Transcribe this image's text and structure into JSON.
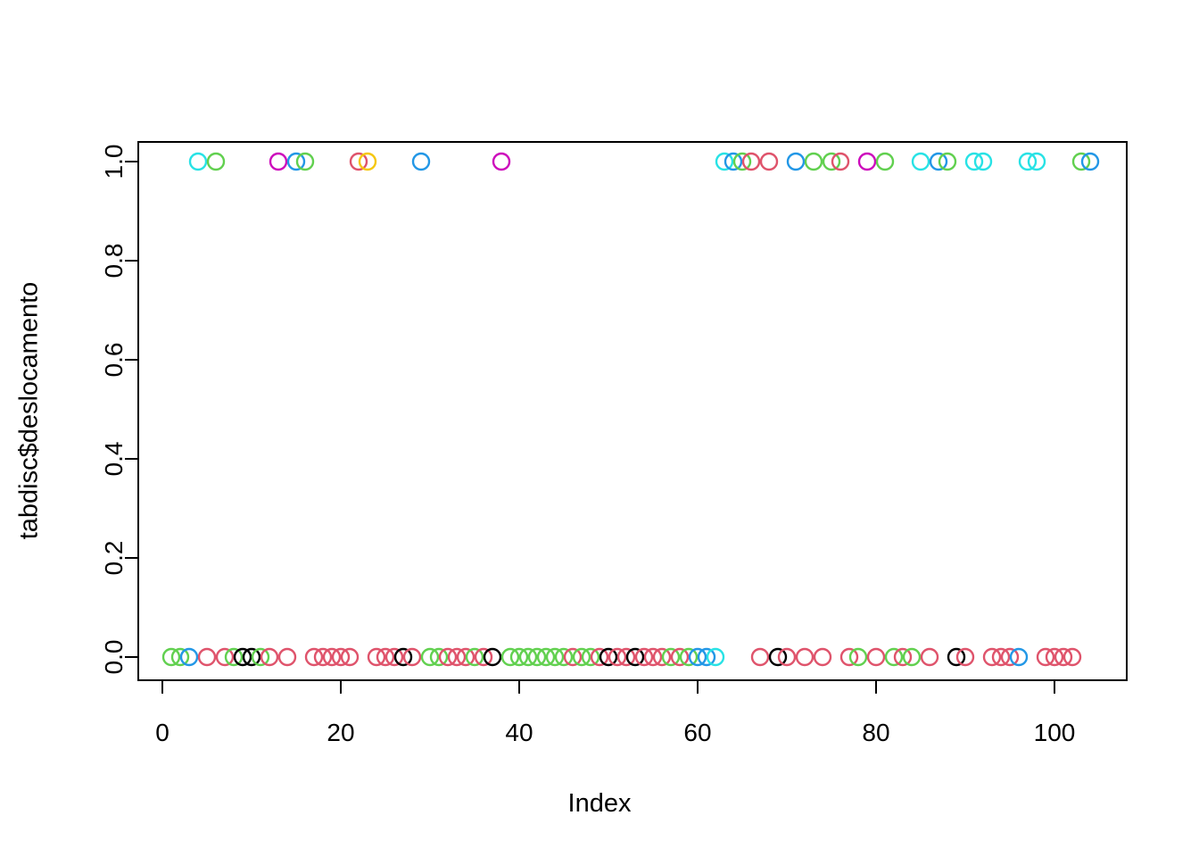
{
  "figure": {
    "background": "#ffffff",
    "border_color": "#000000"
  },
  "chart_data": {
    "type": "scatter",
    "title": "",
    "xlabel": "Index",
    "ylabel": "tabdisc$deslocamento",
    "x_ticks": [
      0,
      20,
      40,
      60,
      80,
      100
    ],
    "y_ticks": [
      "0.0",
      "0.2",
      "0.4",
      "0.6",
      "0.8",
      "1.0"
    ],
    "y_tick_values": [
      0.0,
      0.2,
      0.4,
      0.6,
      0.8,
      1.0
    ],
    "xlim": [
      -3.2,
      109.2
    ],
    "ylim": [
      -0.04,
      1.04
    ],
    "grid": false,
    "legend": null,
    "marker": "open-circle",
    "palette": {
      "k": "#000000",
      "r": "#DF536B",
      "g": "#61D04F",
      "b": "#2297E6",
      "c": "#28E2E5",
      "m": "#CD0BBC",
      "o": "#F5C710"
    },
    "points": [
      [
        1,
        0,
        "g"
      ],
      [
        2,
        0,
        "g"
      ],
      [
        3,
        0,
        "b"
      ],
      [
        4,
        1,
        "c"
      ],
      [
        5,
        0,
        "r"
      ],
      [
        6,
        1,
        "g"
      ],
      [
        7,
        0,
        "r"
      ],
      [
        8,
        0,
        "g"
      ],
      [
        9,
        0,
        "k"
      ],
      [
        10,
        0,
        "k"
      ],
      [
        11,
        0,
        "g"
      ],
      [
        12,
        0,
        "r"
      ],
      [
        13,
        1,
        "m"
      ],
      [
        14,
        0,
        "r"
      ],
      [
        15,
        1,
        "b"
      ],
      [
        16,
        1,
        "g"
      ],
      [
        17,
        0,
        "r"
      ],
      [
        18,
        0,
        "r"
      ],
      [
        19,
        0,
        "r"
      ],
      [
        20,
        0,
        "r"
      ],
      [
        21,
        0,
        "r"
      ],
      [
        22,
        1,
        "r"
      ],
      [
        23,
        1,
        "o"
      ],
      [
        24,
        0,
        "r"
      ],
      [
        25,
        0,
        "r"
      ],
      [
        26,
        0,
        "r"
      ],
      [
        27,
        0,
        "k"
      ],
      [
        28,
        0,
        "r"
      ],
      [
        29,
        1,
        "b"
      ],
      [
        30,
        0,
        "g"
      ],
      [
        31,
        0,
        "g"
      ],
      [
        32,
        0,
        "r"
      ],
      [
        33,
        0,
        "r"
      ],
      [
        34,
        0,
        "r"
      ],
      [
        35,
        0,
        "g"
      ],
      [
        36,
        0,
        "r"
      ],
      [
        37,
        0,
        "k"
      ],
      [
        38,
        1,
        "m"
      ],
      [
        39,
        0,
        "g"
      ],
      [
        40,
        0,
        "g"
      ],
      [
        41,
        0,
        "g"
      ],
      [
        42,
        0,
        "g"
      ],
      [
        43,
        0,
        "g"
      ],
      [
        44,
        0,
        "g"
      ],
      [
        45,
        0,
        "g"
      ],
      [
        46,
        0,
        "r"
      ],
      [
        47,
        0,
        "g"
      ],
      [
        48,
        0,
        "g"
      ],
      [
        49,
        0,
        "r"
      ],
      [
        50,
        0,
        "k"
      ],
      [
        51,
        0,
        "r"
      ],
      [
        52,
        0,
        "r"
      ],
      [
        53,
        0,
        "k"
      ],
      [
        54,
        0,
        "r"
      ],
      [
        55,
        0,
        "r"
      ],
      [
        56,
        0,
        "r"
      ],
      [
        57,
        0,
        "g"
      ],
      [
        58,
        0,
        "r"
      ],
      [
        59,
        0,
        "g"
      ],
      [
        60,
        0,
        "b"
      ],
      [
        61,
        0,
        "b"
      ],
      [
        62,
        0,
        "c"
      ],
      [
        63,
        1,
        "c"
      ],
      [
        64,
        1,
        "b"
      ],
      [
        65,
        1,
        "g"
      ],
      [
        66,
        1,
        "r"
      ],
      [
        67,
        0,
        "r"
      ],
      [
        68,
        1,
        "r"
      ],
      [
        69,
        0,
        "k"
      ],
      [
        70,
        0,
        "r"
      ],
      [
        71,
        1,
        "b"
      ],
      [
        72,
        0,
        "r"
      ],
      [
        73,
        1,
        "g"
      ],
      [
        74,
        0,
        "r"
      ],
      [
        75,
        1,
        "g"
      ],
      [
        76,
        1,
        "r"
      ],
      [
        77,
        0,
        "r"
      ],
      [
        78,
        0,
        "g"
      ],
      [
        79,
        1,
        "m"
      ],
      [
        80,
        0,
        "r"
      ],
      [
        81,
        1,
        "g"
      ],
      [
        82,
        0,
        "g"
      ],
      [
        83,
        0,
        "r"
      ],
      [
        84,
        0,
        "g"
      ],
      [
        85,
        1,
        "c"
      ],
      [
        86,
        0,
        "r"
      ],
      [
        87,
        1,
        "b"
      ],
      [
        88,
        1,
        "g"
      ],
      [
        89,
        0,
        "k"
      ],
      [
        90,
        0,
        "r"
      ],
      [
        91,
        1,
        "c"
      ],
      [
        92,
        1,
        "c"
      ],
      [
        93,
        0,
        "r"
      ],
      [
        94,
        0,
        "r"
      ],
      [
        95,
        0,
        "r"
      ],
      [
        96,
        0,
        "b"
      ],
      [
        97,
        1,
        "c"
      ],
      [
        98,
        1,
        "c"
      ],
      [
        99,
        0,
        "r"
      ],
      [
        100,
        0,
        "r"
      ],
      [
        101,
        0,
        "r"
      ],
      [
        102,
        0,
        "r"
      ],
      [
        103,
        1,
        "g"
      ],
      [
        104,
        1,
        "b"
      ]
    ]
  }
}
